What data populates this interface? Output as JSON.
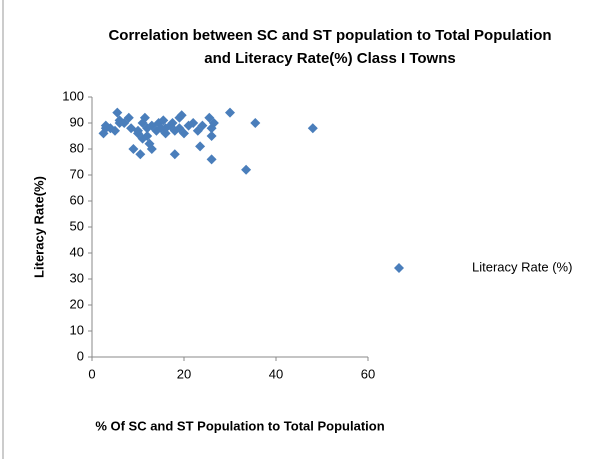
{
  "chart_data": {
    "type": "scatter",
    "title": "Correlation between SC and ST population to Total Population",
    "subtitle": "and Literacy Rate(%) Class I Towns",
    "x_label": "% Of SC and ST Population to Total Population",
    "y_label": "Literacy Rate(%)",
    "xlim": [
      0,
      60
    ],
    "xticks": [
      0,
      20,
      40,
      60
    ],
    "ylim": [
      0,
      100
    ],
    "yticks": [
      0,
      10,
      20,
      30,
      40,
      50,
      60,
      70,
      80,
      90,
      100
    ],
    "grid": false,
    "legend": "right",
    "series": [
      {
        "name": "Literacy  Rate (%)",
        "color": "#4a7ebb",
        "x": [
          2.5,
          3,
          3,
          4,
          5,
          5.5,
          6,
          6,
          7,
          8,
          8.5,
          9,
          10,
          10,
          10.5,
          11,
          11,
          11.5,
          12,
          12,
          12.5,
          13,
          13,
          14,
          14.5,
          15,
          15.5,
          16,
          16,
          17,
          17.5,
          18,
          18,
          19,
          19,
          19.5,
          20,
          21,
          22,
          23,
          23.5,
          24,
          25.5,
          26,
          26,
          26,
          26.5,
          30,
          33.5,
          35.5,
          48
        ],
        "values": [
          86,
          89,
          88,
          88,
          87,
          94,
          91,
          90,
          90,
          92,
          88,
          80,
          87,
          86,
          78,
          90,
          84,
          92,
          88,
          85,
          82,
          80,
          89,
          87,
          90,
          88,
          91,
          86,
          88,
          89,
          90,
          78,
          87,
          92,
          88,
          93,
          86,
          89,
          90,
          87,
          81,
          89,
          92,
          76,
          85,
          88,
          90,
          94,
          72,
          90,
          88
        ]
      }
    ]
  }
}
